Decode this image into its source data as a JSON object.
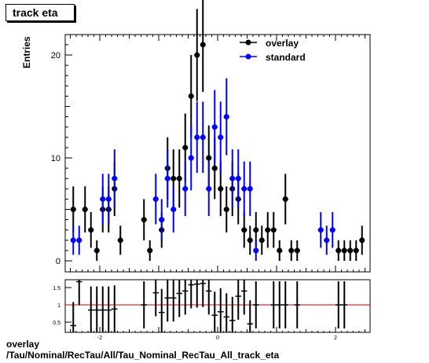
{
  "title": "track eta",
  "footer": {
    "line1": "overlay",
    "line2": "/Tau/Nominal/RecTau/All/Tau_Nominal_RecTau_All_track_eta"
  },
  "chart_data": [
    {
      "type": "scatter",
      "panel": "main",
      "title": "track eta",
      "xlabel": "",
      "ylabel": "Entries",
      "xlim": [
        -2.5,
        2.5
      ],
      "ylim": [
        0,
        22
      ],
      "x_tick_labels": [
        "-2",
        "0",
        "2"
      ],
      "y_tick_labels": [
        "0",
        "10",
        "20"
      ],
      "grid": false,
      "legend": {
        "placement": "top-right",
        "entries": [
          "overlay",
          "standard"
        ]
      },
      "colors": {
        "overlay": "#000000",
        "standard": "#0000ff"
      },
      "series": [
        {
          "name": "overlay",
          "points": [
            {
              "x": -2.45,
              "y": 5
            },
            {
              "x": -2.25,
              "y": 5
            },
            {
              "x": -2.15,
              "y": 3
            },
            {
              "x": -2.05,
              "y": 1
            },
            {
              "x": -1.95,
              "y": 5
            },
            {
              "x": -1.85,
              "y": 5
            },
            {
              "x": -1.75,
              "y": 7
            },
            {
              "x": -1.65,
              "y": 2
            },
            {
              "x": -1.25,
              "y": 4
            },
            {
              "x": -1.15,
              "y": 1
            },
            {
              "x": -0.95,
              "y": 3
            },
            {
              "x": -0.85,
              "y": 9
            },
            {
              "x": -0.75,
              "y": 8
            },
            {
              "x": -0.65,
              "y": 8
            },
            {
              "x": -0.55,
              "y": 11
            },
            {
              "x": -0.45,
              "y": 16
            },
            {
              "x": -0.35,
              "y": 20
            },
            {
              "x": -0.25,
              "y": 21
            },
            {
              "x": -0.15,
              "y": 10
            },
            {
              "x": -0.05,
              "y": 9
            },
            {
              "x": 0.05,
              "y": 7
            },
            {
              "x": 0.15,
              "y": 5
            },
            {
              "x": 0.25,
              "y": 7
            },
            {
              "x": 0.35,
              "y": 6
            },
            {
              "x": 0.45,
              "y": 3
            },
            {
              "x": 0.55,
              "y": 2
            },
            {
              "x": 0.65,
              "y": 3
            },
            {
              "x": 0.75,
              "y": 2
            },
            {
              "x": 0.85,
              "y": 3
            },
            {
              "x": 0.95,
              "y": 3
            },
            {
              "x": 1.05,
              "y": 1
            },
            {
              "x": 1.15,
              "y": 6
            },
            {
              "x": 1.25,
              "y": 1
            },
            {
              "x": 1.35,
              "y": 1
            },
            {
              "x": 2.05,
              "y": 1
            },
            {
              "x": 2.15,
              "y": 1
            },
            {
              "x": 2.25,
              "y": 1
            },
            {
              "x": 2.35,
              "y": 1
            },
            {
              "x": 2.45,
              "y": 2
            }
          ]
        },
        {
          "name": "standard",
          "points": [
            {
              "x": -2.45,
              "y": 2
            },
            {
              "x": -2.35,
              "y": 2
            },
            {
              "x": -1.95,
              "y": 6
            },
            {
              "x": -1.85,
              "y": 6
            },
            {
              "x": -1.75,
              "y": 8
            },
            {
              "x": -1.05,
              "y": 6
            },
            {
              "x": -0.95,
              "y": 4
            },
            {
              "x": -0.85,
              "y": 8
            },
            {
              "x": -0.75,
              "y": 5
            },
            {
              "x": -0.55,
              "y": 7
            },
            {
              "x": -0.45,
              "y": 10
            },
            {
              "x": -0.35,
              "y": 12
            },
            {
              "x": -0.25,
              "y": 12
            },
            {
              "x": -0.15,
              "y": 7
            },
            {
              "x": -0.05,
              "y": 13
            },
            {
              "x": 0.05,
              "y": 12
            },
            {
              "x": 0.15,
              "y": 14
            },
            {
              "x": 0.25,
              "y": 8
            },
            {
              "x": 0.35,
              "y": 8
            },
            {
              "x": 0.45,
              "y": 7
            },
            {
              "x": 0.55,
              "y": 7
            },
            {
              "x": 0.65,
              "y": 1
            },
            {
              "x": 1.75,
              "y": 3
            },
            {
              "x": 1.85,
              "y": 2
            },
            {
              "x": 1.95,
              "y": 3
            }
          ]
        }
      ]
    },
    {
      "type": "scatter",
      "panel": "ratio",
      "xlim": [
        -2.5,
        2.5
      ],
      "ylim": [
        0.2,
        1.7
      ],
      "y_tick_labels": [
        "0.5",
        "1",
        "1.5"
      ],
      "x_tick_labels": [
        "-2",
        "0",
        "2"
      ],
      "reference_line": {
        "y": 1,
        "color": "#cc0000"
      },
      "points": [
        {
          "x": -2.45,
          "y": 0.4
        },
        {
          "x": -2.35,
          "y": 1.67
        },
        {
          "x": -2.15,
          "y": 0.85
        },
        {
          "x": -2.05,
          "y": 0.85
        },
        {
          "x": -1.95,
          "y": 0.85
        },
        {
          "x": -1.85,
          "y": 0.85
        },
        {
          "x": -1.75,
          "y": 0.88
        },
        {
          "x": -1.25,
          "y": 1.0
        },
        {
          "x": -1.05,
          "y": 1.35
        },
        {
          "x": -0.95,
          "y": 0.78
        },
        {
          "x": -0.85,
          "y": 1.2
        },
        {
          "x": -0.75,
          "y": 1.2
        },
        {
          "x": -0.65,
          "y": 1.33
        },
        {
          "x": -0.55,
          "y": 1.4
        },
        {
          "x": -0.45,
          "y": 1.58
        },
        {
          "x": -0.35,
          "y": 1.6
        },
        {
          "x": -0.25,
          "y": 1.62
        },
        {
          "x": -0.15,
          "y": 1.4
        },
        {
          "x": -0.05,
          "y": 0.7
        },
        {
          "x": 0.05,
          "y": 0.8
        },
        {
          "x": 0.15,
          "y": 0.65
        },
        {
          "x": 0.25,
          "y": 0.55
        },
        {
          "x": 0.35,
          "y": 1.25
        },
        {
          "x": 0.45,
          "y": 1.4
        },
        {
          "x": 0.55,
          "y": 0.45
        },
        {
          "x": 0.65,
          "y": 1.0
        },
        {
          "x": 0.95,
          "y": 1.0
        },
        {
          "x": 1.05,
          "y": 1.0
        },
        {
          "x": 1.15,
          "y": 1.0
        },
        {
          "x": 1.35,
          "y": 1.0
        },
        {
          "x": 2.05,
          "y": 1.0
        },
        {
          "x": 2.15,
          "y": 1.0
        }
      ]
    }
  ]
}
